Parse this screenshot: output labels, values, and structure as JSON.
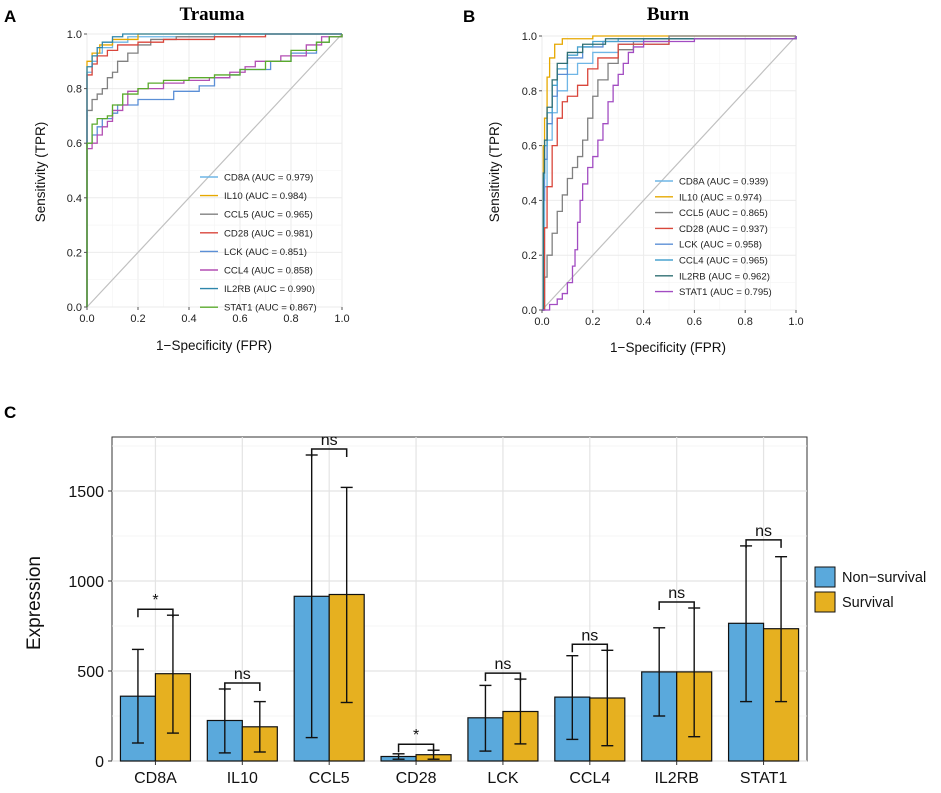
{
  "figure": {
    "panel_labels": [
      "A",
      "B",
      "C"
    ]
  },
  "chart_data": [
    {
      "panel": "A",
      "type": "line",
      "title": "Trauma",
      "xlabel": "1−Specificity (FPR)",
      "ylabel": "Sensitivity (TPR)",
      "xlim": [
        0,
        1
      ],
      "ylim": [
        0,
        1
      ],
      "xticks": [
        "0.0",
        "0.2",
        "0.4",
        "0.6",
        "0.8",
        "1.0"
      ],
      "yticks": [
        "0.0",
        "0.2",
        "0.4",
        "0.6",
        "0.8",
        "1.0"
      ],
      "legend_position": "bottom-right",
      "diagonal_color": "#c0c0c0",
      "series": [
        {
          "name": "CD8A",
          "label": "CD8A (AUC = 0.979)",
          "color": "#6fb6e6",
          "points": [
            [
              0,
              0
            ],
            [
              0,
              0.86
            ],
            [
              0.02,
              0.9
            ],
            [
              0.04,
              0.93
            ],
            [
              0.06,
              0.95
            ],
            [
              0.1,
              0.97
            ],
            [
              0.16,
              0.99
            ],
            [
              0.3,
              0.99
            ],
            [
              0.5,
              1
            ],
            [
              1,
              1
            ]
          ]
        },
        {
          "name": "IL10",
          "label": "IL10 (AUC = 0.984)",
          "color": "#e6a800",
          "points": [
            [
              0,
              0
            ],
            [
              0,
              0.9
            ],
            [
              0.02,
              0.93
            ],
            [
              0.05,
              0.96
            ],
            [
              0.1,
              0.98
            ],
            [
              0.2,
              1
            ],
            [
              1,
              1
            ]
          ]
        },
        {
          "name": "CCL5",
          "label": "CCL5 (AUC = 0.965)",
          "color": "#808080",
          "points": [
            [
              0,
              0
            ],
            [
              0,
              0.72
            ],
            [
              0.02,
              0.76
            ],
            [
              0.04,
              0.78
            ],
            [
              0.06,
              0.8
            ],
            [
              0.08,
              0.84
            ],
            [
              0.1,
              0.86
            ],
            [
              0.12,
              0.9
            ],
            [
              0.16,
              0.93
            ],
            [
              0.2,
              0.96
            ],
            [
              0.25,
              0.98
            ],
            [
              0.35,
              0.99
            ],
            [
              0.6,
              1
            ],
            [
              1,
              1
            ]
          ]
        },
        {
          "name": "CD28",
          "label": "CD28 (AUC = 0.981)",
          "color": "#d9463b",
          "points": [
            [
              0,
              0
            ],
            [
              0,
              0.85
            ],
            [
              0.02,
              0.89
            ],
            [
              0.04,
              0.92
            ],
            [
              0.08,
              0.94
            ],
            [
              0.12,
              0.96
            ],
            [
              0.2,
              0.97
            ],
            [
              0.3,
              0.98
            ],
            [
              0.5,
              0.99
            ],
            [
              0.7,
              1
            ],
            [
              1,
              1
            ]
          ]
        },
        {
          "name": "LCK",
          "label": "LCK (AUC = 0.851)",
          "color": "#5b8fd6",
          "points": [
            [
              0,
              0
            ],
            [
              0,
              0.6
            ],
            [
              0.02,
              0.63
            ],
            [
              0.04,
              0.66
            ],
            [
              0.06,
              0.69
            ],
            [
              0.1,
              0.71
            ],
            [
              0.12,
              0.74
            ],
            [
              0.2,
              0.76
            ],
            [
              0.3,
              0.76
            ],
            [
              0.34,
              0.79
            ],
            [
              0.44,
              0.81
            ],
            [
              0.5,
              0.84
            ],
            [
              0.56,
              0.85
            ],
            [
              0.6,
              0.87
            ],
            [
              0.72,
              0.9
            ],
            [
              0.8,
              0.93
            ],
            [
              0.9,
              0.97
            ],
            [
              0.95,
              0.99
            ],
            [
              1,
              1
            ]
          ]
        },
        {
          "name": "CCL4",
          "label": "CCL4 (AUC = 0.858)",
          "color": "#b34fb3",
          "points": [
            [
              0,
              0
            ],
            [
              0,
              0.58
            ],
            [
              0.02,
              0.6
            ],
            [
              0.04,
              0.63
            ],
            [
              0.06,
              0.66
            ],
            [
              0.08,
              0.68
            ],
            [
              0.1,
              0.72
            ],
            [
              0.14,
              0.74
            ],
            [
              0.16,
              0.79
            ],
            [
              0.2,
              0.8
            ],
            [
              0.3,
              0.82
            ],
            [
              0.38,
              0.83
            ],
            [
              0.48,
              0.84
            ],
            [
              0.56,
              0.86
            ],
            [
              0.62,
              0.88
            ],
            [
              0.66,
              0.9
            ],
            [
              0.76,
              0.92
            ],
            [
              0.86,
              0.96
            ],
            [
              0.92,
              0.99
            ],
            [
              1,
              1
            ]
          ]
        },
        {
          "name": "IL2RB",
          "label": "IL2RB (AUC = 0.990)",
          "color": "#2e86ab",
          "points": [
            [
              0,
              0
            ],
            [
              0,
              0.88
            ],
            [
              0.02,
              0.92
            ],
            [
              0.04,
              0.95
            ],
            [
              0.06,
              0.97
            ],
            [
              0.1,
              0.99
            ],
            [
              0.14,
              1
            ],
            [
              1,
              1
            ]
          ]
        },
        {
          "name": "STAT1",
          "label": "STAT1 (AUC = 0.867)",
          "color": "#5aaa2c",
          "points": [
            [
              0,
              0
            ],
            [
              0,
              0.6
            ],
            [
              0.02,
              0.67
            ],
            [
              0.04,
              0.69
            ],
            [
              0.08,
              0.7
            ],
            [
              0.1,
              0.74
            ],
            [
              0.14,
              0.78
            ],
            [
              0.2,
              0.8
            ],
            [
              0.24,
              0.82
            ],
            [
              0.3,
              0.83
            ],
            [
              0.4,
              0.84
            ],
            [
              0.5,
              0.85
            ],
            [
              0.6,
              0.87
            ],
            [
              0.7,
              0.9
            ],
            [
              0.8,
              0.94
            ],
            [
              0.9,
              0.97
            ],
            [
              0.95,
              0.99
            ],
            [
              1,
              1
            ]
          ]
        }
      ]
    },
    {
      "panel": "B",
      "type": "line",
      "title": "Burn",
      "xlabel": "1−Specificity (FPR)",
      "ylabel": "Sensitivity (TPR)",
      "xlim": [
        0,
        1
      ],
      "ylim": [
        0,
        1
      ],
      "xticks": [
        "0.0",
        "0.2",
        "0.4",
        "0.6",
        "0.8",
        "1.0"
      ],
      "yticks": [
        "0.0",
        "0.2",
        "0.4",
        "0.6",
        "0.8",
        "1.0"
      ],
      "legend_position": "bottom-right",
      "diagonal_color": "#c0c0c0",
      "series": [
        {
          "name": "CD8A",
          "label": "CD8A (AUC = 0.939)",
          "color": "#6fb6e6",
          "points": [
            [
              0,
              0
            ],
            [
              0.01,
              0.45
            ],
            [
              0.02,
              0.62
            ],
            [
              0.04,
              0.72
            ],
            [
              0.06,
              0.8
            ],
            [
              0.1,
              0.86
            ],
            [
              0.14,
              0.9
            ],
            [
              0.2,
              0.94
            ],
            [
              0.3,
              0.97
            ],
            [
              0.5,
              0.99
            ],
            [
              1,
              1
            ]
          ]
        },
        {
          "name": "IL10",
          "label": "IL10 (AUC = 0.974)",
          "color": "#e6a800",
          "points": [
            [
              0,
              0
            ],
            [
              0.005,
              0.6
            ],
            [
              0.01,
              0.7
            ],
            [
              0.02,
              0.85
            ],
            [
              0.03,
              0.92
            ],
            [
              0.05,
              0.97
            ],
            [
              0.08,
              0.99
            ],
            [
              0.2,
              1
            ],
            [
              1,
              1
            ]
          ]
        },
        {
          "name": "CCL5",
          "label": "CCL5 (AUC = 0.865)",
          "color": "#808080",
          "points": [
            [
              0,
              0
            ],
            [
              0.01,
              0.12
            ],
            [
              0.02,
              0.2
            ],
            [
              0.04,
              0.28
            ],
            [
              0.06,
              0.36
            ],
            [
              0.08,
              0.42
            ],
            [
              0.1,
              0.48
            ],
            [
              0.12,
              0.52
            ],
            [
              0.14,
              0.56
            ],
            [
              0.16,
              0.62
            ],
            [
              0.18,
              0.7
            ],
            [
              0.2,
              0.78
            ],
            [
              0.22,
              0.84
            ],
            [
              0.26,
              0.9
            ],
            [
              0.3,
              0.95
            ],
            [
              0.36,
              0.98
            ],
            [
              0.5,
              1
            ],
            [
              1,
              1
            ]
          ]
        },
        {
          "name": "CD28",
          "label": "CD28 (AUC = 0.937)",
          "color": "#d9463b",
          "points": [
            [
              0,
              0
            ],
            [
              0.01,
              0.3
            ],
            [
              0.02,
              0.45
            ],
            [
              0.04,
              0.6
            ],
            [
              0.06,
              0.7
            ],
            [
              0.08,
              0.76
            ],
            [
              0.1,
              0.78
            ],
            [
              0.14,
              0.82
            ],
            [
              0.18,
              0.88
            ],
            [
              0.22,
              0.92
            ],
            [
              0.3,
              0.97
            ],
            [
              0.5,
              0.99
            ],
            [
              1,
              1
            ]
          ]
        },
        {
          "name": "LCK",
          "label": "LCK (AUC = 0.958)",
          "color": "#5b8fd6",
          "points": [
            [
              0,
              0
            ],
            [
              0.005,
              0.4
            ],
            [
              0.01,
              0.55
            ],
            [
              0.02,
              0.68
            ],
            [
              0.04,
              0.78
            ],
            [
              0.06,
              0.86
            ],
            [
              0.1,
              0.92
            ],
            [
              0.16,
              0.96
            ],
            [
              0.24,
              0.98
            ],
            [
              0.4,
              0.99
            ],
            [
              1,
              1
            ]
          ]
        },
        {
          "name": "CCL4",
          "label": "CCL4 (AUC = 0.965)",
          "color": "#4aa3cf",
          "points": [
            [
              0,
              0
            ],
            [
              0.005,
              0.48
            ],
            [
              0.01,
              0.6
            ],
            [
              0.02,
              0.72
            ],
            [
              0.04,
              0.82
            ],
            [
              0.06,
              0.88
            ],
            [
              0.1,
              0.93
            ],
            [
              0.14,
              0.96
            ],
            [
              0.2,
              0.98
            ],
            [
              0.3,
              0.99
            ],
            [
              1,
              1
            ]
          ]
        },
        {
          "name": "IL2RB",
          "label": "IL2RB (AUC = 0.962)",
          "color": "#2f6f73",
          "points": [
            [
              0,
              0
            ],
            [
              0.005,
              0.5
            ],
            [
              0.01,
              0.62
            ],
            [
              0.02,
              0.74
            ],
            [
              0.04,
              0.84
            ],
            [
              0.06,
              0.9
            ],
            [
              0.1,
              0.94
            ],
            [
              0.16,
              0.97
            ],
            [
              0.25,
              0.99
            ],
            [
              1,
              1
            ]
          ]
        },
        {
          "name": "STAT1",
          "label": "STAT1 (AUC = 0.795)",
          "color": "#a24cc2",
          "points": [
            [
              0,
              0
            ],
            [
              0.03,
              0.02
            ],
            [
              0.06,
              0.04
            ],
            [
              0.08,
              0.06
            ],
            [
              0.1,
              0.1
            ],
            [
              0.12,
              0.16
            ],
            [
              0.13,
              0.22
            ],
            [
              0.14,
              0.32
            ],
            [
              0.15,
              0.4
            ],
            [
              0.16,
              0.46
            ],
            [
              0.18,
              0.52
            ],
            [
              0.2,
              0.56
            ],
            [
              0.22,
              0.62
            ],
            [
              0.24,
              0.68
            ],
            [
              0.26,
              0.76
            ],
            [
              0.28,
              0.82
            ],
            [
              0.3,
              0.86
            ],
            [
              0.32,
              0.9
            ],
            [
              0.34,
              0.94
            ],
            [
              0.36,
              0.96
            ],
            [
              0.4,
              0.98
            ],
            [
              0.6,
              0.99
            ],
            [
              1,
              1
            ]
          ]
        }
      ]
    },
    {
      "panel": "C",
      "type": "bar",
      "title": "",
      "xlabel": "",
      "ylabel": "Expression",
      "ylim": [
        0,
        1800
      ],
      "yticks": [
        0,
        500,
        1000,
        1500
      ],
      "categories": [
        "CD8A",
        "IL10",
        "CCL5",
        "CD28",
        "LCK",
        "CCL4",
        "IL2RB",
        "STAT1"
      ],
      "legend_position": "right",
      "series": [
        {
          "name": "Non−survival",
          "color": "#5aa9dc",
          "values": [
            360,
            225,
            915,
            25,
            240,
            355,
            495,
            765
          ],
          "error_low": [
            100,
            45,
            130,
            10,
            55,
            120,
            250,
            330
          ],
          "error_high": [
            620,
            400,
            1700,
            40,
            420,
            585,
            740,
            1195
          ]
        },
        {
          "name": "Survival",
          "color": "#e6b020",
          "values": [
            485,
            190,
            925,
            35,
            275,
            350,
            495,
            735
          ],
          "error_low": [
            155,
            50,
            325,
            10,
            95,
            85,
            135,
            330
          ],
          "error_high": [
            810,
            330,
            1520,
            60,
            455,
            615,
            850,
            1135
          ]
        }
      ],
      "significance": [
        "*",
        "ns",
        "ns",
        "*",
        "ns",
        "ns",
        "ns",
        "ns"
      ]
    }
  ]
}
